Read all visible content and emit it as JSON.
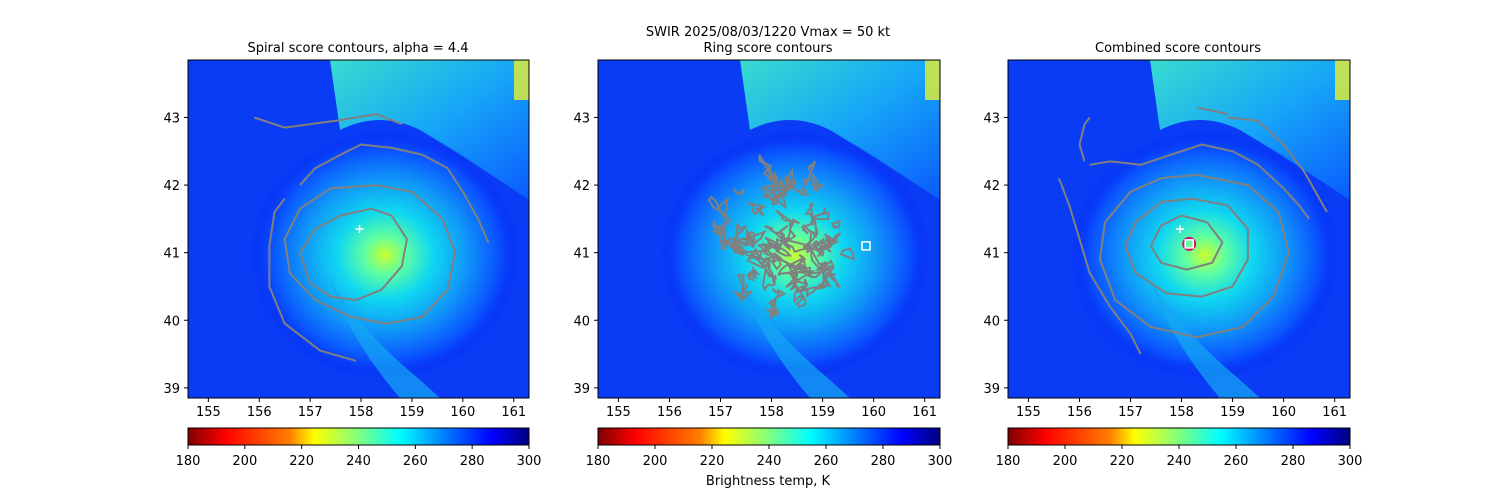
{
  "suptitle": "SWIR  2025/08/03/1220    Vmax = 50 kt",
  "colorbar_label": "Brightness temp, K",
  "chart_data": [
    {
      "type": "heatmap",
      "title": "Spiral score contours, alpha =  4.4",
      "x_ticks": [
        155,
        156,
        157,
        158,
        159,
        160,
        161
      ],
      "y_ticks": [
        39,
        40,
        41,
        42,
        43
      ],
      "xlim": [
        154.6,
        161.3
      ],
      "ylim": [
        38.85,
        43.85
      ],
      "markers": [
        {
          "kind": "plus",
          "color": "#ffffff",
          "lon": 157.97,
          "lat": 41.35
        }
      ],
      "contours": [
        [
          [
            156.8,
            42.0
          ],
          [
            157.1,
            42.25
          ],
          [
            157.6,
            42.45
          ],
          [
            158.0,
            42.6
          ],
          [
            158.6,
            42.55
          ],
          [
            159.2,
            42.45
          ],
          [
            159.7,
            42.25
          ],
          [
            160.0,
            41.9
          ],
          [
            160.3,
            41.5
          ],
          [
            160.5,
            41.15
          ]
        ],
        [
          [
            155.9,
            43.0
          ],
          [
            156.5,
            42.85
          ],
          [
            157.5,
            42.95
          ],
          [
            158.3,
            43.05
          ],
          [
            158.8,
            42.9
          ]
        ],
        [
          [
            157.9,
            39.4
          ],
          [
            157.2,
            39.55
          ],
          [
            156.5,
            39.95
          ],
          [
            156.2,
            40.5
          ],
          [
            156.2,
            41.1
          ],
          [
            156.3,
            41.6
          ],
          [
            156.5,
            41.8
          ]
        ],
        [
          [
            158.6,
            41.55
          ],
          [
            158.9,
            41.2
          ],
          [
            158.8,
            40.8
          ],
          [
            158.4,
            40.45
          ],
          [
            157.9,
            40.3
          ],
          [
            157.4,
            40.35
          ],
          [
            157.0,
            40.55
          ],
          [
            156.8,
            41.0
          ],
          [
            157.1,
            41.35
          ],
          [
            157.6,
            41.55
          ],
          [
            158.2,
            41.65
          ],
          [
            158.6,
            41.55
          ]
        ],
        [
          [
            158.3,
            42.0
          ],
          [
            159.0,
            41.9
          ],
          [
            159.6,
            41.5
          ],
          [
            159.85,
            41.0
          ],
          [
            159.7,
            40.45
          ],
          [
            159.2,
            40.05
          ],
          [
            158.5,
            39.95
          ],
          [
            157.8,
            40.05
          ],
          [
            157.1,
            40.3
          ],
          [
            156.6,
            40.7
          ],
          [
            156.5,
            41.2
          ],
          [
            156.8,
            41.65
          ],
          [
            157.4,
            41.95
          ],
          [
            158.3,
            42.0
          ]
        ]
      ]
    },
    {
      "type": "heatmap",
      "title": "Ring score contours",
      "x_ticks": [
        155,
        156,
        157,
        158,
        159,
        160,
        161
      ],
      "y_ticks": [
        39,
        40,
        41,
        42,
        43
      ],
      "xlim": [
        154.6,
        161.3
      ],
      "ylim": [
        38.85,
        43.85
      ],
      "markers": [
        {
          "kind": "square",
          "color": "#ffffff",
          "lon": 159.85,
          "lat": 41.1
        }
      ],
      "ring_region": {
        "lon": 158.1,
        "lat": 41.1,
        "rlon": 1.35,
        "rlat": 1.0
      }
    },
    {
      "type": "heatmap",
      "title": "Combined score contours",
      "x_ticks": [
        155,
        156,
        157,
        158,
        159,
        160,
        161
      ],
      "y_ticks": [
        39,
        40,
        41,
        42,
        43
      ],
      "xlim": [
        154.6,
        161.3
      ],
      "ylim": [
        38.85,
        43.85
      ],
      "markers": [
        {
          "kind": "plus",
          "color": "#ffffff",
          "lon": 157.97,
          "lat": 41.35
        },
        {
          "kind": "circle",
          "color": "#d4106c",
          "lon": 158.15,
          "lat": 41.13
        },
        {
          "kind": "square",
          "color": "#ffffff",
          "lon": 158.15,
          "lat": 41.13
        }
      ],
      "contours": [
        [
          [
            156.2,
            42.3
          ],
          [
            156.6,
            42.35
          ],
          [
            157.2,
            42.3
          ],
          [
            157.8,
            42.45
          ],
          [
            158.4,
            42.6
          ],
          [
            159.0,
            42.5
          ],
          [
            159.5,
            42.3
          ],
          [
            160.0,
            41.95
          ],
          [
            160.3,
            41.7
          ],
          [
            160.5,
            41.5
          ]
        ],
        [
          [
            158.9,
            43.0
          ],
          [
            159.5,
            42.95
          ],
          [
            160.0,
            42.6
          ],
          [
            160.4,
            42.2
          ],
          [
            160.7,
            41.8
          ],
          [
            160.85,
            41.6
          ]
        ],
        [
          [
            158.3,
            43.15
          ],
          [
            158.9,
            43.05
          ]
        ],
        [
          [
            156.1,
            42.35
          ],
          [
            156.0,
            42.6
          ],
          [
            156.1,
            42.9
          ],
          [
            156.2,
            43.0
          ]
        ],
        [
          [
            155.6,
            42.1
          ],
          [
            155.8,
            41.7
          ],
          [
            156.0,
            41.2
          ],
          [
            156.2,
            40.7
          ],
          [
            156.6,
            40.2
          ],
          [
            157.0,
            39.8
          ],
          [
            157.2,
            39.5
          ]
        ],
        [
          [
            158.0,
            41.55
          ],
          [
            158.5,
            41.45
          ],
          [
            158.8,
            41.15
          ],
          [
            158.6,
            40.85
          ],
          [
            158.1,
            40.75
          ],
          [
            157.6,
            40.85
          ],
          [
            157.4,
            41.1
          ],
          [
            157.6,
            41.4
          ],
          [
            158.0,
            41.55
          ]
        ],
        [
          [
            158.2,
            41.8
          ],
          [
            158.9,
            41.7
          ],
          [
            159.3,
            41.35
          ],
          [
            159.3,
            40.9
          ],
          [
            159.0,
            40.5
          ],
          [
            158.4,
            40.35
          ],
          [
            157.7,
            40.4
          ],
          [
            157.1,
            40.7
          ],
          [
            156.9,
            41.1
          ],
          [
            157.1,
            41.45
          ],
          [
            157.6,
            41.75
          ],
          [
            158.2,
            41.8
          ]
        ],
        [
          [
            158.3,
            42.15
          ],
          [
            159.3,
            42.0
          ],
          [
            159.9,
            41.6
          ],
          [
            160.1,
            41.0
          ],
          [
            159.8,
            40.35
          ],
          [
            159.2,
            39.9
          ],
          [
            158.3,
            39.75
          ],
          [
            157.4,
            39.9
          ],
          [
            156.7,
            40.3
          ],
          [
            156.4,
            40.9
          ],
          [
            156.5,
            41.45
          ],
          [
            157.0,
            41.9
          ],
          [
            157.6,
            42.1
          ],
          [
            158.3,
            42.15
          ]
        ]
      ]
    }
  ],
  "colorbar": {
    "ticks": [
      180,
      200,
      220,
      240,
      260,
      280,
      300
    ],
    "vmin": 180,
    "vmax": 300,
    "colormap": "jet_r",
    "stops": [
      "#7f0000",
      "#ff0000",
      "#ff8000",
      "#ffff00",
      "#80ff80",
      "#00ffff",
      "#0080ff",
      "#0000ff",
      "#00007f"
    ]
  },
  "colors": {
    "contour": "#808080",
    "axis": "#000000"
  }
}
